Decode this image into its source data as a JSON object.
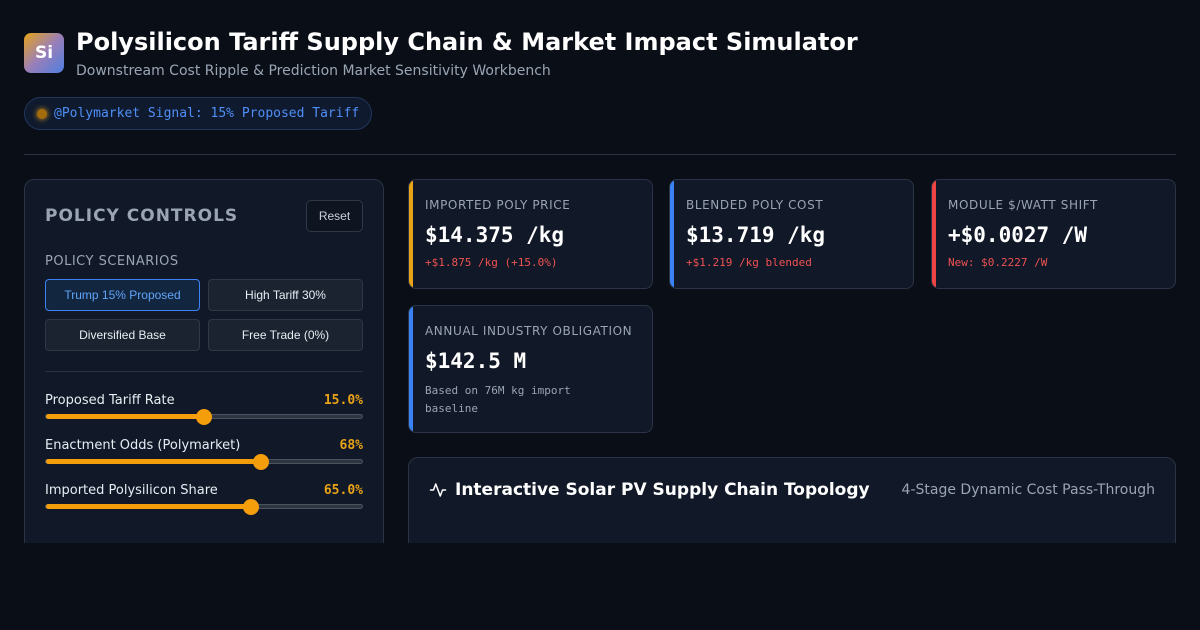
{
  "header": {
    "logo_text": "Si",
    "title": "Polysilicon Tariff Supply Chain & Market Impact Simulator",
    "subtitle": "Downstream Cost Ripple & Prediction Market Sensitivity Workbench"
  },
  "signal_badge": {
    "text": "@Polymarket Signal: 15% Proposed Tariff"
  },
  "controls": {
    "title": "POLICY CONTROLS",
    "reset_label": "Reset",
    "scenarios_label": "POLICY SCENARIOS",
    "scenarios": [
      {
        "label": "Trump 15% Proposed",
        "active": true
      },
      {
        "label": "High Tariff 30%",
        "active": false
      },
      {
        "label": "Diversified Base",
        "active": false
      },
      {
        "label": "Free Trade (0%)",
        "active": false
      }
    ],
    "sliders": [
      {
        "label": "Proposed Tariff Rate",
        "value_text": "15.0%",
        "fraction": 0.5
      },
      {
        "label": "Enactment Odds (Polymarket)",
        "value_text": "68%",
        "fraction": 0.68
      },
      {
        "label": "Imported Polysilicon Share",
        "value_text": "65.0%",
        "fraction": 0.65
      }
    ]
  },
  "cards": {
    "imported": {
      "label": "IMPORTED POLY PRICE",
      "value": "$14.375 /kg",
      "delta": "+$1.875 /kg (+15.0%)",
      "accent": "#e8a317"
    },
    "blended": {
      "label": "BLENDED POLY COST",
      "value": "$13.719 /kg",
      "delta": "+$1.219 /kg blended",
      "accent": "#3b82f6"
    },
    "module": {
      "label": "MODULE $/WATT SHIFT",
      "value": "+$0.0027 /W",
      "delta": "New: $0.2227 /W",
      "accent": "#ef4444"
    },
    "annual": {
      "label": "ANNUAL INDUSTRY OBLIGATION",
      "value": "$142.5 M",
      "note": "Based on 76M kg import baseline",
      "accent": "#3b82f6"
    }
  },
  "topology": {
    "icon": "activity-icon",
    "title": "Interactive Solar PV Supply Chain Topology",
    "subtitle": "4-Stage Dynamic Cost Pass-Through"
  }
}
